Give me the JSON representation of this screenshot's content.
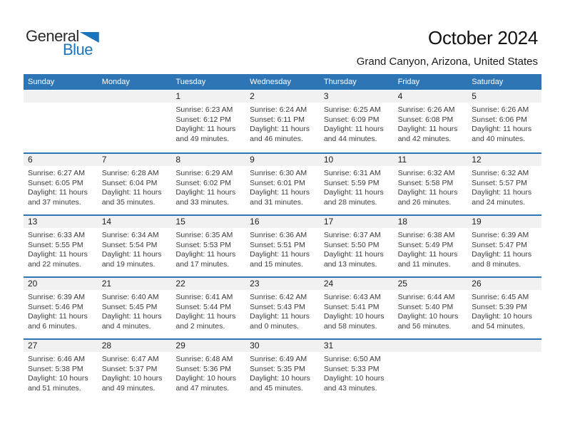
{
  "logo": {
    "part1": "General",
    "part2": "Blue"
  },
  "header": {
    "title": "October 2024",
    "subtitle": "Grand Canyon, Arizona, United States"
  },
  "colors": {
    "header_blue": "#2E75B6",
    "logo_blue": "#1B75BC",
    "band_gray": "#F1F1F1"
  },
  "weekdays": [
    "Sunday",
    "Monday",
    "Tuesday",
    "Wednesday",
    "Thursday",
    "Friday",
    "Saturday"
  ],
  "weeks": [
    [
      {
        "day": "",
        "sunrise": "",
        "sunset": "",
        "daylight": ""
      },
      {
        "day": "",
        "sunrise": "",
        "sunset": "",
        "daylight": ""
      },
      {
        "day": "1",
        "sunrise": "Sunrise: 6:23 AM",
        "sunset": "Sunset: 6:12 PM",
        "daylight": "Daylight: 11 hours and 49 minutes."
      },
      {
        "day": "2",
        "sunrise": "Sunrise: 6:24 AM",
        "sunset": "Sunset: 6:11 PM",
        "daylight": "Daylight: 11 hours and 46 minutes."
      },
      {
        "day": "3",
        "sunrise": "Sunrise: 6:25 AM",
        "sunset": "Sunset: 6:09 PM",
        "daylight": "Daylight: 11 hours and 44 minutes."
      },
      {
        "day": "4",
        "sunrise": "Sunrise: 6:26 AM",
        "sunset": "Sunset: 6:08 PM",
        "daylight": "Daylight: 11 hours and 42 minutes."
      },
      {
        "day": "5",
        "sunrise": "Sunrise: 6:26 AM",
        "sunset": "Sunset: 6:06 PM",
        "daylight": "Daylight: 11 hours and 40 minutes."
      }
    ],
    [
      {
        "day": "6",
        "sunrise": "Sunrise: 6:27 AM",
        "sunset": "Sunset: 6:05 PM",
        "daylight": "Daylight: 11 hours and 37 minutes."
      },
      {
        "day": "7",
        "sunrise": "Sunrise: 6:28 AM",
        "sunset": "Sunset: 6:04 PM",
        "daylight": "Daylight: 11 hours and 35 minutes."
      },
      {
        "day": "8",
        "sunrise": "Sunrise: 6:29 AM",
        "sunset": "Sunset: 6:02 PM",
        "daylight": "Daylight: 11 hours and 33 minutes."
      },
      {
        "day": "9",
        "sunrise": "Sunrise: 6:30 AM",
        "sunset": "Sunset: 6:01 PM",
        "daylight": "Daylight: 11 hours and 31 minutes."
      },
      {
        "day": "10",
        "sunrise": "Sunrise: 6:31 AM",
        "sunset": "Sunset: 5:59 PM",
        "daylight": "Daylight: 11 hours and 28 minutes."
      },
      {
        "day": "11",
        "sunrise": "Sunrise: 6:32 AM",
        "sunset": "Sunset: 5:58 PM",
        "daylight": "Daylight: 11 hours and 26 minutes."
      },
      {
        "day": "12",
        "sunrise": "Sunrise: 6:32 AM",
        "sunset": "Sunset: 5:57 PM",
        "daylight": "Daylight: 11 hours and 24 minutes."
      }
    ],
    [
      {
        "day": "13",
        "sunrise": "Sunrise: 6:33 AM",
        "sunset": "Sunset: 5:55 PM",
        "daylight": "Daylight: 11 hours and 22 minutes."
      },
      {
        "day": "14",
        "sunrise": "Sunrise: 6:34 AM",
        "sunset": "Sunset: 5:54 PM",
        "daylight": "Daylight: 11 hours and 19 minutes."
      },
      {
        "day": "15",
        "sunrise": "Sunrise: 6:35 AM",
        "sunset": "Sunset: 5:53 PM",
        "daylight": "Daylight: 11 hours and 17 minutes."
      },
      {
        "day": "16",
        "sunrise": "Sunrise: 6:36 AM",
        "sunset": "Sunset: 5:51 PM",
        "daylight": "Daylight: 11 hours and 15 minutes."
      },
      {
        "day": "17",
        "sunrise": "Sunrise: 6:37 AM",
        "sunset": "Sunset: 5:50 PM",
        "daylight": "Daylight: 11 hours and 13 minutes."
      },
      {
        "day": "18",
        "sunrise": "Sunrise: 6:38 AM",
        "sunset": "Sunset: 5:49 PM",
        "daylight": "Daylight: 11 hours and 11 minutes."
      },
      {
        "day": "19",
        "sunrise": "Sunrise: 6:39 AM",
        "sunset": "Sunset: 5:47 PM",
        "daylight": "Daylight: 11 hours and 8 minutes."
      }
    ],
    [
      {
        "day": "20",
        "sunrise": "Sunrise: 6:39 AM",
        "sunset": "Sunset: 5:46 PM",
        "daylight": "Daylight: 11 hours and 6 minutes."
      },
      {
        "day": "21",
        "sunrise": "Sunrise: 6:40 AM",
        "sunset": "Sunset: 5:45 PM",
        "daylight": "Daylight: 11 hours and 4 minutes."
      },
      {
        "day": "22",
        "sunrise": "Sunrise: 6:41 AM",
        "sunset": "Sunset: 5:44 PM",
        "daylight": "Daylight: 11 hours and 2 minutes."
      },
      {
        "day": "23",
        "sunrise": "Sunrise: 6:42 AM",
        "sunset": "Sunset: 5:43 PM",
        "daylight": "Daylight: 11 hours and 0 minutes."
      },
      {
        "day": "24",
        "sunrise": "Sunrise: 6:43 AM",
        "sunset": "Sunset: 5:41 PM",
        "daylight": "Daylight: 10 hours and 58 minutes."
      },
      {
        "day": "25",
        "sunrise": "Sunrise: 6:44 AM",
        "sunset": "Sunset: 5:40 PM",
        "daylight": "Daylight: 10 hours and 56 minutes."
      },
      {
        "day": "26",
        "sunrise": "Sunrise: 6:45 AM",
        "sunset": "Sunset: 5:39 PM",
        "daylight": "Daylight: 10 hours and 54 minutes."
      }
    ],
    [
      {
        "day": "27",
        "sunrise": "Sunrise: 6:46 AM",
        "sunset": "Sunset: 5:38 PM",
        "daylight": "Daylight: 10 hours and 51 minutes."
      },
      {
        "day": "28",
        "sunrise": "Sunrise: 6:47 AM",
        "sunset": "Sunset: 5:37 PM",
        "daylight": "Daylight: 10 hours and 49 minutes."
      },
      {
        "day": "29",
        "sunrise": "Sunrise: 6:48 AM",
        "sunset": "Sunset: 5:36 PM",
        "daylight": "Daylight: 10 hours and 47 minutes."
      },
      {
        "day": "30",
        "sunrise": "Sunrise: 6:49 AM",
        "sunset": "Sunset: 5:35 PM",
        "daylight": "Daylight: 10 hours and 45 minutes."
      },
      {
        "day": "31",
        "sunrise": "Sunrise: 6:50 AM",
        "sunset": "Sunset: 5:33 PM",
        "daylight": "Daylight: 10 hours and 43 minutes."
      },
      {
        "day": "",
        "sunrise": "",
        "sunset": "",
        "daylight": ""
      },
      {
        "day": "",
        "sunrise": "",
        "sunset": "",
        "daylight": ""
      }
    ]
  ]
}
